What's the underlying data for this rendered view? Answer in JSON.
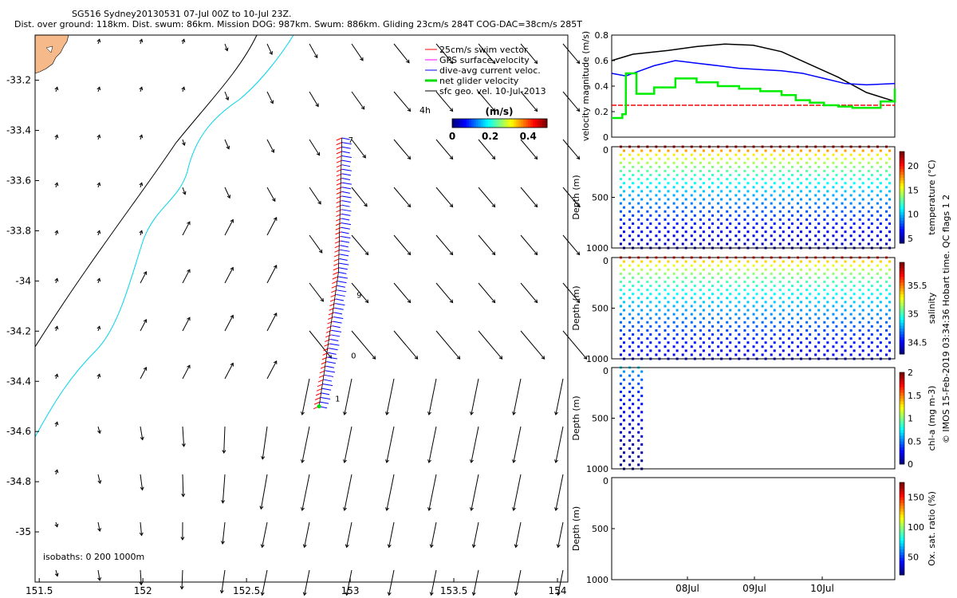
{
  "header": {
    "title": "SG516 Sydney20130531 07-Jul 00Z to 10-Jul 23Z.",
    "subtitle": "Dist. over ground: 118km. Dist. swum: 86km. Mission DOG: 987km. Swum: 886km. Gliding 23cm/s 284T COG-DAC=38cm/s 285T"
  },
  "map": {
    "legend": [
      {
        "label": "25cm/s swim vector",
        "color": "#ff0000"
      },
      {
        "label": "GPS surface velocity",
        "color": "#ff00ff"
      },
      {
        "label": "dive-avg current veloc.",
        "color": "#0000ff"
      },
      {
        "label": "net glider velocity",
        "color": "#00dd00"
      },
      {
        "label": "sfc geo. vel. 10-Jul-2013",
        "color": "#000000"
      }
    ],
    "legend_extra": "4h",
    "colorbar": {
      "title": "(m/s)",
      "ticks": [
        "0",
        "0.2",
        "0.4"
      ],
      "range": [
        0,
        0.5
      ]
    },
    "isobaths_label": "isobaths: 0   200  1000m",
    "track_labels": [
      "7",
      "9",
      "0",
      "1"
    ],
    "land_color": "#f5b98a",
    "shelf_color": "#00d6e8",
    "isobath_color": "#000000"
  },
  "chart_data": [
    {
      "type": "scatter",
      "title": "",
      "xlabel": "",
      "ylabel": "",
      "xlim": [
        151.48,
        154.05
      ],
      "ylim": [
        -35.2,
        -33.02
      ],
      "x_ticks": [
        "151.5",
        "152",
        "152.5",
        "153",
        "153.5",
        "154"
      ],
      "y_ticks": [
        "-33.2",
        "-33.4",
        "-33.6",
        "-33.8",
        "-34",
        "-34.2",
        "-34.4",
        "-34.6",
        "-34.8",
        "-35"
      ],
      "series": [
        {
          "name": "dive-avg current veloc.",
          "track_start": [
            152.85,
            -34.5
          ],
          "track_end": [
            152.96,
            -33.43
          ]
        }
      ]
    },
    {
      "type": "line",
      "title": "",
      "ylabel": "velocity magnitude (m/s)",
      "xlim": [
        0,
        4
      ],
      "ylim": [
        0,
        0.8
      ],
      "y_ticks": [
        "0",
        "0.2",
        "0.4",
        "0.6",
        "0.8"
      ],
      "series": [
        {
          "name": "sfc geo. vel.",
          "color": "#000000",
          "x": [
            0,
            0.3,
            0.8,
            1.2,
            1.6,
            2.0,
            2.4,
            2.8,
            3.2,
            3.6,
            4.0
          ],
          "values": [
            0.6,
            0.65,
            0.68,
            0.71,
            0.73,
            0.72,
            0.67,
            0.57,
            0.47,
            0.35,
            0.28
          ]
        },
        {
          "name": "dive-avg current veloc.",
          "color": "#0000ff",
          "x": [
            0,
            0.2,
            0.4,
            0.6,
            0.9,
            1.2,
            1.5,
            1.8,
            2.1,
            2.4,
            2.7,
            3.0,
            3.3,
            3.6,
            4.0
          ],
          "values": [
            0.5,
            0.48,
            0.52,
            0.56,
            0.6,
            0.58,
            0.56,
            0.54,
            0.53,
            0.52,
            0.5,
            0.46,
            0.42,
            0.41,
            0.42
          ]
        },
        {
          "name": "swim vector",
          "color": "#ff0000",
          "x": [
            0,
            4
          ],
          "values": [
            0.25,
            0.25
          ]
        },
        {
          "name": "net glider velocity",
          "color": "#00ee00",
          "x": [
            0,
            0.15,
            0.2,
            0.35,
            0.6,
            0.9,
            1.2,
            1.5,
            1.8,
            2.1,
            2.4,
            2.6,
            2.8,
            3.0,
            3.2,
            3.4,
            3.6,
            3.8,
            4.0
          ],
          "values": [
            0.15,
            0.18,
            0.5,
            0.34,
            0.39,
            0.46,
            0.43,
            0.4,
            0.38,
            0.36,
            0.33,
            0.29,
            0.27,
            0.25,
            0.24,
            0.23,
            0.23,
            0.28,
            0.38
          ]
        }
      ]
    },
    {
      "type": "scatter",
      "ylabel": "Depth (m)",
      "colorbar_label": "temperature (°C)",
      "colorbar_ticks": [
        "5",
        "10",
        "15",
        "20"
      ],
      "colorbar_range": [
        4,
        23
      ],
      "ylim": [
        1000,
        0
      ],
      "y_ticks": [
        "0",
        "500",
        "1000"
      ],
      "profiles": 31,
      "surface_value": 21.5,
      "bottom_value": 5
    },
    {
      "type": "scatter",
      "ylabel": "Depth (m)",
      "colorbar_label": "salinity",
      "colorbar_ticks": [
        "34.5",
        "35",
        "35.5"
      ],
      "colorbar_range": [
        34.3,
        35.9
      ],
      "ylim": [
        1000,
        0
      ],
      "y_ticks": [
        "0",
        "500",
        "1000"
      ],
      "profiles": 31,
      "surface_value": 35.65,
      "bottom_value": 34.45
    },
    {
      "type": "scatter",
      "ylabel": "Depth (m)",
      "colorbar_label": "chl-a (mg m-3)",
      "colorbar_ticks": [
        "0",
        "0.5",
        "1",
        "1.5",
        "2"
      ],
      "colorbar_range": [
        0,
        2
      ],
      "ylim": [
        1000,
        0
      ],
      "y_ticks": [
        "0",
        "500",
        "1000"
      ],
      "profiles": 3,
      "surface_value": 0.7,
      "bottom_value": 0.02
    },
    {
      "type": "scatter",
      "ylabel": "Depth (m)",
      "colorbar_label": "Ox. sat. ratio (%)",
      "colorbar_ticks": [
        "50",
        "100",
        "150"
      ],
      "colorbar_range": [
        20,
        175
      ],
      "ylim": [
        1000,
        0
      ],
      "y_ticks": [
        "0",
        "500",
        "1000"
      ],
      "x_ticks": [
        "08Jul",
        "09Jul",
        "10Jul"
      ],
      "profiles": 0
    }
  ],
  "footer": {
    "credit": "© IMOS 15-Feb-2019 03:34:36 Hobart time. QC flags 1  2"
  }
}
